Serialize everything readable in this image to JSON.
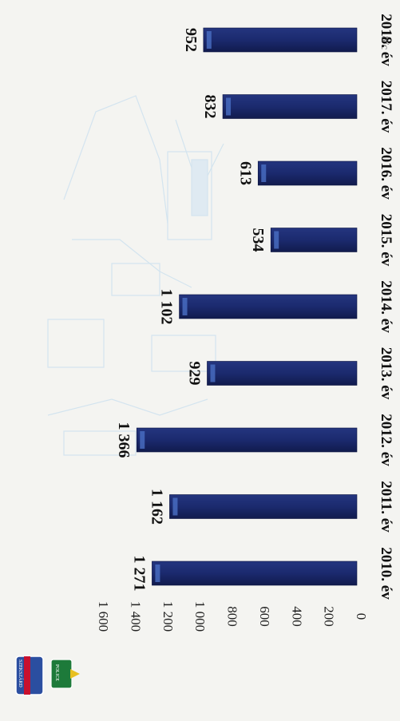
{
  "page_fragment": "8/c",
  "logo": {
    "left_shield_text": "SZEKSZÁRD",
    "right_shield_text": "POLICE",
    "colors": [
      "#2b4ea0",
      "#c8102e",
      "#1d7a3a",
      "#e8c020"
    ]
  },
  "colors": {
    "bar": "#1b2a6e",
    "bar_highlight": "#4a6fc4",
    "watermark": "#b9d7ee",
    "background": "#f4f4f1"
  },
  "chart_data": {
    "type": "bar",
    "orientation": "rotated-90-clockwise",
    "categories": [
      "2010. év",
      "2011. év",
      "2012. év",
      "2013. év",
      "2014. év",
      "2015. év",
      "2016. év",
      "2017. év",
      "2018. év"
    ],
    "values": [
      1271,
      1162,
      1366,
      929,
      1102,
      534,
      613,
      832,
      952
    ],
    "value_labels": [
      "1 271",
      "1 162",
      "1 366",
      "929",
      "1 102",
      "534",
      "613",
      "832",
      "952"
    ],
    "value_axis": {
      "min": 0,
      "max": 1600,
      "ticks": [
        0,
        200,
        400,
        600,
        800,
        1000,
        1200,
        1400,
        1600
      ],
      "tick_labels": [
        "0",
        "200",
        "400",
        "600",
        "800",
        "1 000",
        "1 200",
        "1 400",
        "1 600"
      ]
    },
    "grid": false,
    "legend": "none"
  }
}
